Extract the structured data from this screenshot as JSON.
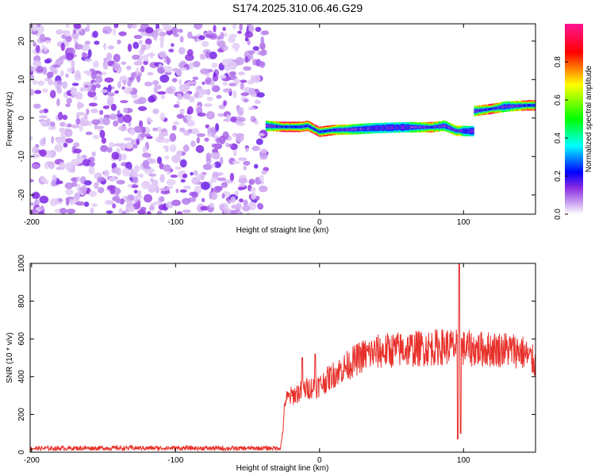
{
  "title": "S174.2025.310.06.46.G29",
  "chart_data": [
    {
      "type": "heatmap",
      "xlabel": "Height of straight line (km)",
      "ylabel": "Frequency (Hz)",
      "xlim": [
        -201,
        150
      ],
      "ylim": [
        -25,
        24.5
      ],
      "x_ticks": [
        -200,
        -100,
        0,
        100
      ],
      "y_ticks": [
        -20,
        -10,
        0,
        10,
        20
      ],
      "colorbar": {
        "label": "Normalized spectral amplitude",
        "range": [
          0,
          1
        ],
        "ticks": [
          "0.0",
          "0.2",
          "0.4",
          "0.6",
          "0.8"
        ],
        "tick_values": [
          0.0,
          0.2,
          0.4,
          0.6,
          0.8
        ],
        "colors": [
          "#ffffff",
          "#8a2be2",
          "#0000ff",
          "#00ffff",
          "#00ff00",
          "#ffff00",
          "#ff0000",
          "#ff1493"
        ]
      },
      "noise_region_x": [
        -201,
        -37
      ],
      "signal_ridge": [
        {
          "x": -37,
          "freq": -2.0,
          "amp": 0.5
        },
        {
          "x": -25,
          "freq": -2.3,
          "amp": 0.9
        },
        {
          "x": -13,
          "freq": -2.3,
          "amp": 0.85
        },
        {
          "x": -8,
          "freq": -2.0,
          "amp": 0.8
        },
        {
          "x": 0,
          "freq": -3.6,
          "amp": 0.9
        },
        {
          "x": 10,
          "freq": -3.1,
          "amp": 0.8
        },
        {
          "x": 20,
          "freq": -3.0,
          "amp": 0.6
        },
        {
          "x": 40,
          "freq": -2.6,
          "amp": 0.4
        },
        {
          "x": 60,
          "freq": -2.4,
          "amp": 0.4
        },
        {
          "x": 78,
          "freq": -2.4,
          "amp": 0.8
        },
        {
          "x": 87,
          "freq": -2.0,
          "amp": 0.5
        },
        {
          "x": 95,
          "freq": -3.3,
          "amp": 0.7
        },
        {
          "x": 103,
          "freq": -3.4,
          "amp": 0.4
        },
        {
          "x": 108,
          "freq": 1.8,
          "amp": 0.6
        },
        {
          "x": 120,
          "freq": 2.4,
          "amp": 0.9
        },
        {
          "x": 130,
          "freq": 3.0,
          "amp": 0.5
        },
        {
          "x": 145,
          "freq": 3.3,
          "amp": 0.9
        }
      ]
    },
    {
      "type": "line",
      "xlabel": "Height of straight line (km)",
      "ylabel": "SNR (10 * v/v)",
      "xlim": [
        -201,
        150
      ],
      "ylim": [
        0,
        1000
      ],
      "x_ticks": [
        -200,
        -100,
        0,
        100
      ],
      "y_ticks": [
        0,
        200,
        400,
        600,
        800,
        1000
      ],
      "color": "#e8302a",
      "envelope": [
        {
          "x": -201,
          "y": 20
        },
        {
          "x": -150,
          "y": 22
        },
        {
          "x": -100,
          "y": 22
        },
        {
          "x": -60,
          "y": 20
        },
        {
          "x": -27,
          "y": 22
        },
        {
          "x": -25,
          "y": 150
        },
        {
          "x": -24,
          "y": 280
        },
        {
          "x": -20,
          "y": 300
        },
        {
          "x": -10,
          "y": 340
        },
        {
          "x": 0,
          "y": 360
        },
        {
          "x": 10,
          "y": 420
        },
        {
          "x": 20,
          "y": 470
        },
        {
          "x": 30,
          "y": 520
        },
        {
          "x": 40,
          "y": 540
        },
        {
          "x": 50,
          "y": 550
        },
        {
          "x": 60,
          "y": 555
        },
        {
          "x": 70,
          "y": 560
        },
        {
          "x": 80,
          "y": 565
        },
        {
          "x": 90,
          "y": 570
        },
        {
          "x": 100,
          "y": 560
        },
        {
          "x": 110,
          "y": 555
        },
        {
          "x": 120,
          "y": 555
        },
        {
          "x": 130,
          "y": 555
        },
        {
          "x": 140,
          "y": 545
        },
        {
          "x": 150,
          "y": 480
        }
      ],
      "spikes": [
        {
          "x": -12,
          "y": 500
        },
        {
          "x": -3,
          "y": 520
        },
        {
          "x": 96,
          "y": 70
        },
        {
          "x": 97,
          "y": 1000
        },
        {
          "x": 98,
          "y": 100
        }
      ]
    }
  ]
}
